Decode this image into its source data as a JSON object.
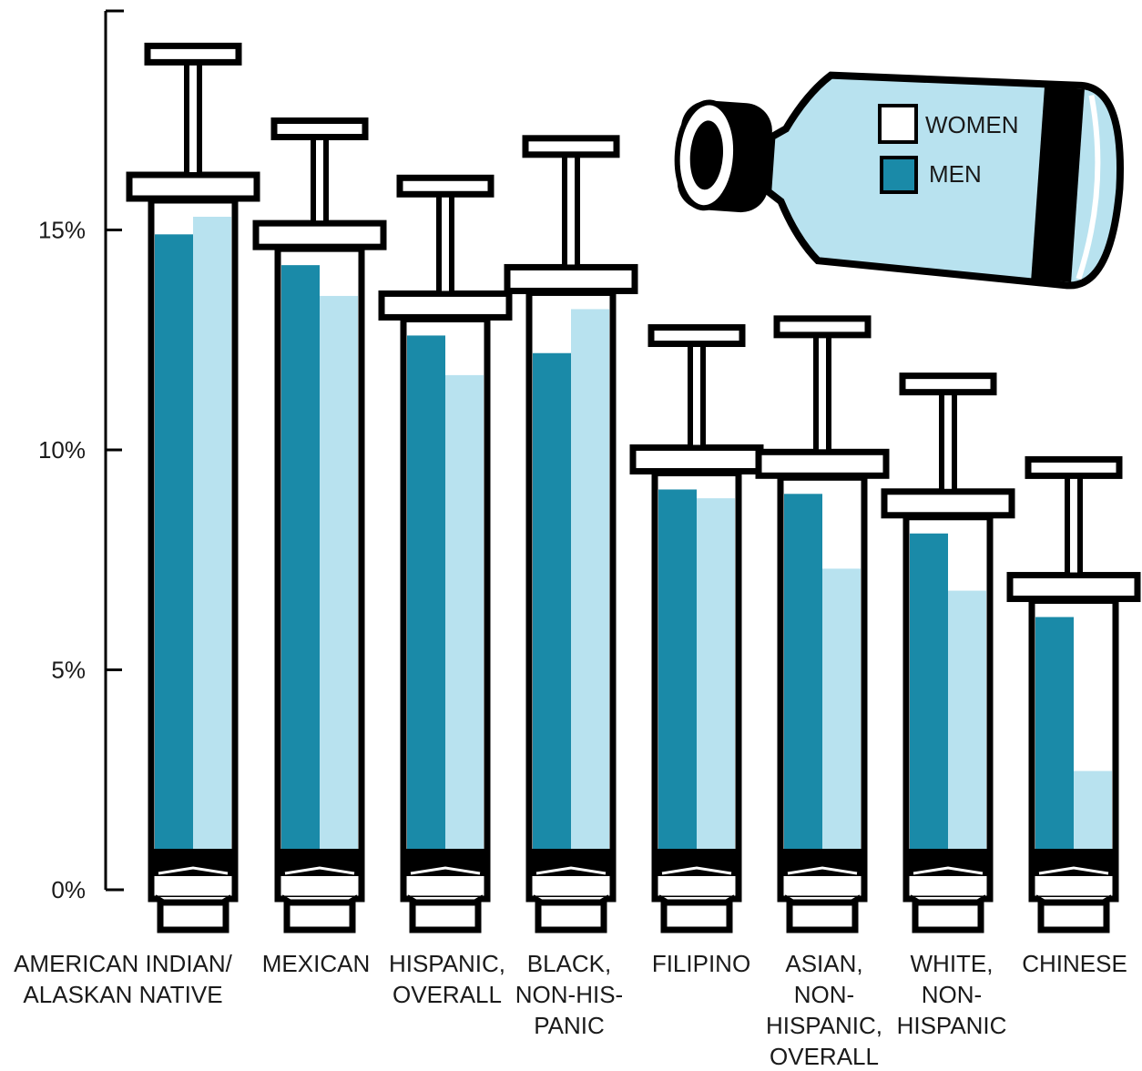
{
  "chart_data": {
    "type": "bar",
    "style": "syringe pictogram, grouped bars",
    "title": "",
    "xlabel": "",
    "ylabel": "",
    "ylim": [
      0,
      20
    ],
    "yticks": [
      {
        "value": 0,
        "label": "0%"
      },
      {
        "value": 5,
        "label": "5%"
      },
      {
        "value": 10,
        "label": "10%"
      },
      {
        "value": 15,
        "label": "15%"
      }
    ],
    "categories": [
      {
        "lines": [
          "AMERICAN INDIAN/",
          "ALASKAN NATIVE"
        ]
      },
      {
        "lines": [
          "MEXICAN"
        ]
      },
      {
        "lines": [
          "HISPANIC,",
          "OVERALL"
        ]
      },
      {
        "lines": [
          "BLACK,",
          "NON-HIS-",
          "PANIC"
        ]
      },
      {
        "lines": [
          "FILIPINO"
        ]
      },
      {
        "lines": [
          "ASIAN,",
          "NON-",
          "HISPANIC,",
          "OVERALL"
        ]
      },
      {
        "lines": [
          "WHITE,",
          "NON-",
          "HISPANIC"
        ]
      },
      {
        "lines": [
          "CHINESE"
        ]
      }
    ],
    "series": [
      {
        "name": "MEN",
        "color": "#1a8aa8",
        "values": [
          14.9,
          14.2,
          12.6,
          12.2,
          9.1,
          9.0,
          8.1,
          6.2
        ]
      },
      {
        "name": "WOMEN",
        "color": "#b8e2ef",
        "values": [
          15.3,
          13.5,
          11.7,
          13.2,
          8.9,
          7.3,
          6.8,
          2.7
        ]
      }
    ],
    "legend": {
      "placement": "top-right",
      "icon": "bottle-icon"
    },
    "grid": false
  }
}
